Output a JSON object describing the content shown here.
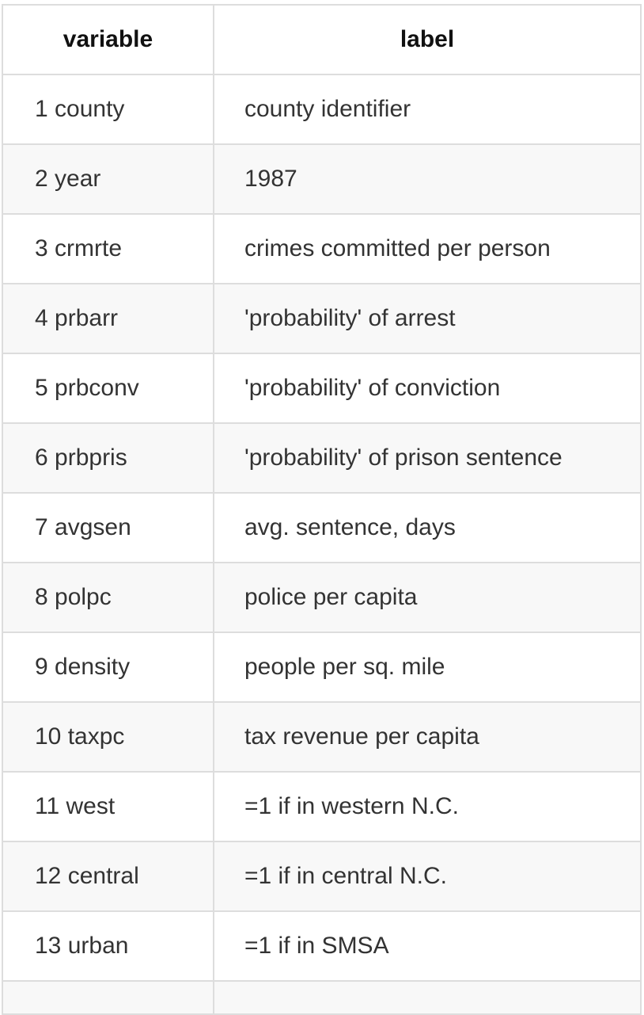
{
  "table": {
    "headers": [
      "variable",
      "label"
    ],
    "rows": [
      {
        "variable": "1 county",
        "label": "county identifier"
      },
      {
        "variable": "2 year",
        "label": "1987"
      },
      {
        "variable": "3 crmrte",
        "label": "crimes committed per person"
      },
      {
        "variable": "4 prbarr",
        "label": "'probability' of arrest"
      },
      {
        "variable": "5 prbconv",
        "label": "'probability' of conviction"
      },
      {
        "variable": "6 prbpris",
        "label": "'probability' of prison sentence"
      },
      {
        "variable": "7 avgsen",
        "label": "avg. sentence, days"
      },
      {
        "variable": "8 polpc",
        "label": "police per capita"
      },
      {
        "variable": "9 density",
        "label": "people per sq. mile"
      },
      {
        "variable": "10 taxpc",
        "label": "tax revenue per capita"
      },
      {
        "variable": "11 west",
        "label": "=1 if in western N.C."
      },
      {
        "variable": "12 central",
        "label": "=1 if in central N.C."
      },
      {
        "variable": "13 urban",
        "label": "=1 if in SMSA"
      }
    ]
  }
}
